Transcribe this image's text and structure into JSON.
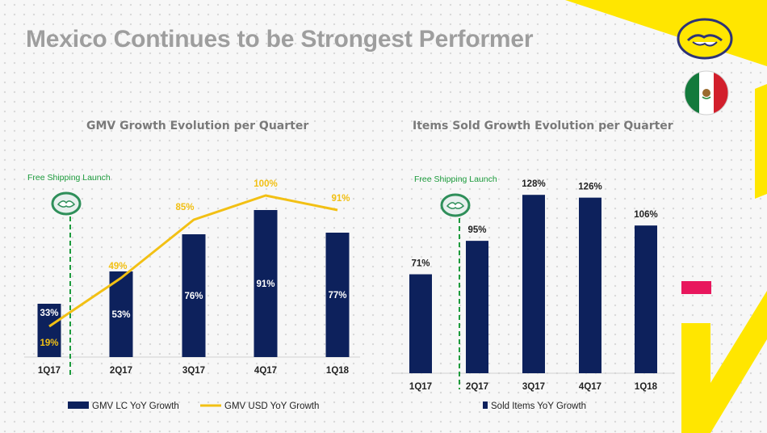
{
  "page": {
    "title": "Mexico Continues to be Strongest Performer"
  },
  "colors": {
    "bar": "#0d215c",
    "line": "#f2c014",
    "brand_yellow": "#ffe600",
    "accent_pink": "#e8175d",
    "annotation_green": "#1c9b3c",
    "title_gray": "#9e9e9e"
  },
  "icons": {
    "brand_logo": "handshake-logo-icon",
    "country_flag": "mexico-flag-icon",
    "annotation_marker": "handshake-small-icon"
  },
  "chart_data": [
    {
      "type": "bar",
      "title": "GMV Growth Evolution per Quarter",
      "categories": [
        "1Q17",
        "2Q17",
        "3Q17",
        "4Q17",
        "1Q18"
      ],
      "series": [
        {
          "name": "GMV LC YoY Growth",
          "type": "bar",
          "values": [
            33,
            53,
            76,
            91,
            77
          ],
          "labels": [
            "33%",
            "53%",
            "76%",
            "91%",
            "77%"
          ]
        },
        {
          "name": "GMV USD YoY Growth",
          "type": "line",
          "values": [
            19,
            49,
            85,
            100,
            91
          ],
          "labels": [
            "19%",
            "49%",
            "85%",
            "100%",
            "91%"
          ]
        }
      ],
      "annotation": {
        "label": "Free Shipping Launch",
        "between": [
          "1Q17",
          "2Q17"
        ]
      },
      "legend": "bottom",
      "grid": false
    },
    {
      "type": "bar",
      "title": "Items Sold Growth Evolution per Quarter",
      "categories": [
        "1Q17",
        "2Q17",
        "3Q17",
        "4Q17",
        "1Q18"
      ],
      "series": [
        {
          "name": "Sold Items YoY Growth",
          "type": "bar",
          "values": [
            71,
            95,
            128,
            126,
            106
          ],
          "labels": [
            "71%",
            "95%",
            "128%",
            "126%",
            "106%"
          ]
        }
      ],
      "annotation": {
        "label": "Free Shipping Launch",
        "between": [
          "1Q17",
          "2Q17"
        ]
      },
      "legend": "bottom",
      "grid": false
    }
  ]
}
